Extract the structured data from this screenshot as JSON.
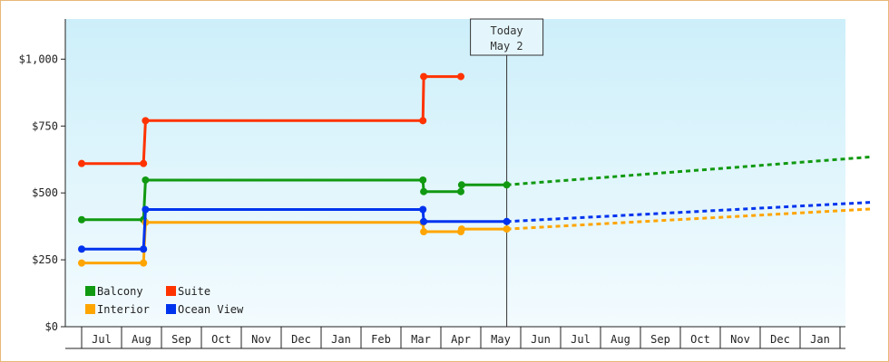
{
  "chart_data": {
    "type": "line",
    "title": "",
    "xlabel": "",
    "ylabel": "",
    "ylim": [
      0,
      1150
    ],
    "grid": false,
    "legend": "bottom-left",
    "y_ticks": [
      {
        "value": 0,
        "label": "$0"
      },
      {
        "value": 250,
        "label": "$250"
      },
      {
        "value": 500,
        "label": "$500"
      },
      {
        "value": 750,
        "label": "$750"
      },
      {
        "value": 1000,
        "label": "$1,000"
      }
    ],
    "x_months": [
      {
        "index": 0,
        "label": ""
      },
      {
        "index": 1,
        "label": "Jul"
      },
      {
        "index": 2,
        "label": "Aug"
      },
      {
        "index": 3,
        "label": "Sep"
      },
      {
        "index": 4,
        "label": "Oct"
      },
      {
        "index": 5,
        "label": "Nov"
      },
      {
        "index": 6,
        "label": "Dec"
      },
      {
        "index": 7,
        "label": "Jan"
      },
      {
        "index": 8,
        "label": "Feb"
      },
      {
        "index": 9,
        "label": "Mar"
      },
      {
        "index": 10,
        "label": "Apr"
      },
      {
        "index": 11,
        "label": "May"
      },
      {
        "index": 12,
        "label": "Jun"
      },
      {
        "index": 13,
        "label": "Jul"
      },
      {
        "index": 14,
        "label": "Aug"
      },
      {
        "index": 15,
        "label": "Sep"
      },
      {
        "index": 16,
        "label": "Oct"
      },
      {
        "index": 17,
        "label": "Nov"
      },
      {
        "index": 18,
        "label": "Dec"
      },
      {
        "index": 19,
        "label": "Jan"
      }
    ],
    "x_range": [
      0,
      19.8
    ],
    "today": {
      "x": 10.65,
      "line1": "Today",
      "line2": "May 2"
    },
    "series": [
      {
        "name": "Balcony",
        "color": "#119911",
        "points": [
          [
            0,
            400
          ],
          [
            1.55,
            400
          ],
          [
            1.6,
            548
          ],
          [
            8.55,
            548
          ],
          [
            8.57,
            505
          ],
          [
            9.5,
            505
          ],
          [
            9.52,
            530
          ],
          [
            10.65,
            530
          ]
        ],
        "forecast": [
          [
            10.65,
            530
          ],
          [
            19.8,
            635
          ]
        ]
      },
      {
        "name": "Suite",
        "color": "#ff3300",
        "points": [
          [
            0,
            610
          ],
          [
            1.55,
            610
          ],
          [
            1.6,
            770
          ],
          [
            8.55,
            770
          ],
          [
            8.57,
            935
          ],
          [
            9.5,
            935
          ]
        ],
        "forecast": []
      },
      {
        "name": "Interior",
        "color": "#ffa500",
        "points": [
          [
            0,
            238
          ],
          [
            1.55,
            238
          ],
          [
            1.6,
            390
          ],
          [
            8.55,
            390
          ],
          [
            8.57,
            355
          ],
          [
            9.5,
            355
          ],
          [
            9.52,
            365
          ],
          [
            10.65,
            365
          ]
        ],
        "forecast": [
          [
            10.65,
            365
          ],
          [
            19.8,
            440
          ]
        ]
      },
      {
        "name": "Ocean View",
        "color": "#0033ee",
        "points": [
          [
            0,
            290
          ],
          [
            1.55,
            290
          ],
          [
            1.6,
            438
          ],
          [
            8.55,
            438
          ],
          [
            8.57,
            393
          ],
          [
            10.65,
            393
          ]
        ],
        "forecast": [
          [
            10.65,
            393
          ],
          [
            19.8,
            465
          ]
        ]
      }
    ]
  }
}
